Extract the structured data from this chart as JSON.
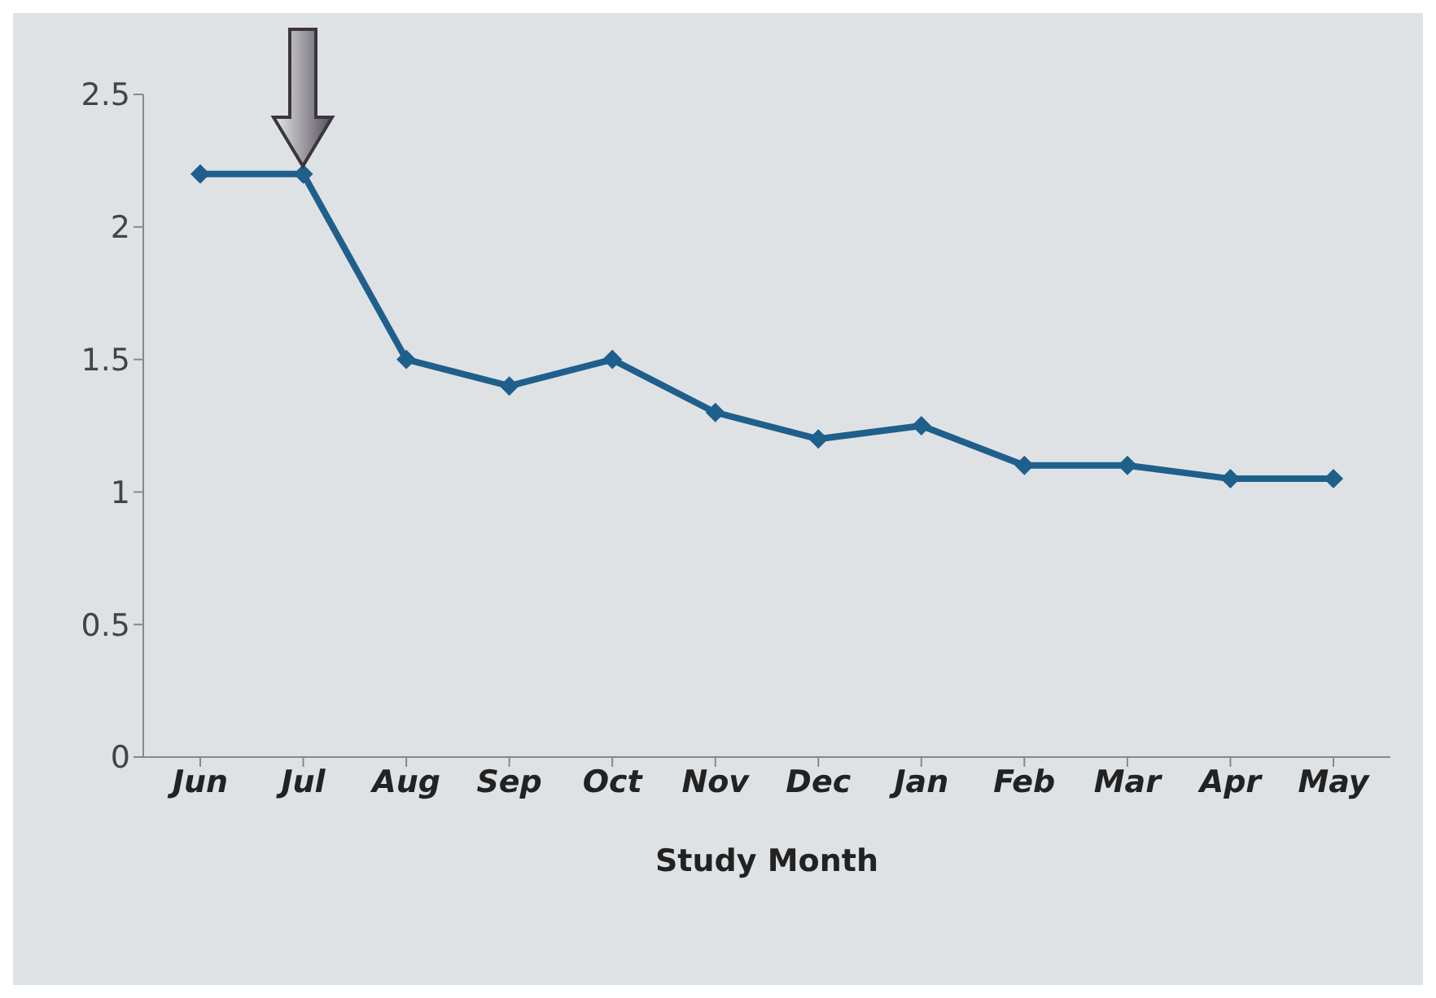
{
  "chart_data": {
    "type": "line",
    "xlabel": "Study Month",
    "categories": [
      "Jun",
      "Jul",
      "Aug",
      "Sep",
      "Oct",
      "Nov",
      "Dec",
      "Jan",
      "Feb",
      "Mar",
      "Apr",
      "May"
    ],
    "series": [
      {
        "color": "#1f5f8b",
        "values": [
          2.2,
          2.2,
          1.5,
          1.4,
          1.5,
          1.3,
          1.2,
          1.25,
          1.1,
          1.1,
          1.05,
          1.05
        ]
      }
    ],
    "ylim": [
      0,
      2.5
    ],
    "yticks": [
      0,
      0.5,
      1,
      1.5,
      2,
      2.5
    ],
    "grid": false,
    "legend": false,
    "marker": "diamond",
    "line_style": "solid"
  }
}
